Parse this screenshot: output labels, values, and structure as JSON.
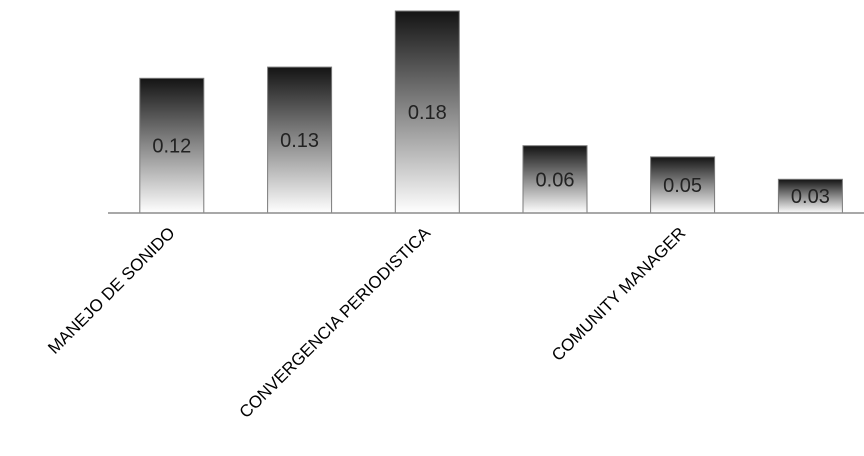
{
  "chart_data": {
    "type": "bar",
    "categories": [
      "MANEJO DE SONIDO",
      "",
      "CONVERGENCIA PERIODISTICA",
      "",
      "COMUNITY MANAGER",
      ""
    ],
    "values": [
      0.12,
      0.13,
      0.18,
      0.06,
      0.05,
      0.03
    ],
    "title": "",
    "xlabel": "",
    "ylabel": "",
    "ylim": [
      0,
      0.18
    ],
    "grid": false,
    "legend": "none",
    "bar_gradient": [
      "#141414",
      "#ffffff"
    ]
  }
}
